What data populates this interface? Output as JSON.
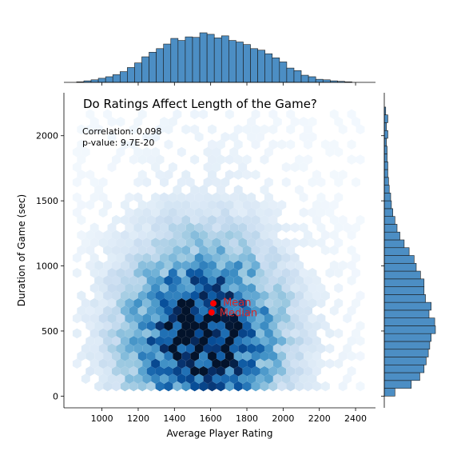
{
  "chart_data": {
    "type": "heatmap",
    "subtype": "hexbin-jointplot",
    "title": "Do Ratings Affect Length of the Game?",
    "xlabel": "Average Player Rating",
    "ylabel": "Duration of Game (sec)",
    "xlim": [
      790,
      2510
    ],
    "ylim": [
      -90,
      2330
    ],
    "x_ticks": [
      1000,
      1200,
      1400,
      1600,
      1800,
      2000,
      2200,
      2400
    ],
    "x_tick_labels": [
      "1000",
      "1200",
      "1400",
      "1600",
      "1800",
      "2000",
      "2200",
      "2400"
    ],
    "y_ticks": [
      0,
      500,
      1000,
      1500,
      2000
    ],
    "y_tick_labels": [
      "0",
      "500",
      "1000",
      "1500",
      "2000"
    ],
    "annotations": {
      "correlation": "Correlation: 0.098",
      "pvalue": "p-value: 9.7E-20",
      "mean_label": "Mean",
      "median_label": "Median"
    },
    "points": {
      "mean": {
        "x": 1615,
        "y": 712
      },
      "median": {
        "x": 1605,
        "y": 643
      }
    },
    "grid": false,
    "colors": {
      "hex_colormap": "Blues",
      "marginal_fill": "#4c8ec4",
      "marginal_edge": "#1a1a1a",
      "marker": "#ff0000",
      "annotation_text": "#d62728"
    },
    "hexbin_center": {
      "x": 1560,
      "y": 470
    },
    "hexbin_spread": {
      "x": 260,
      "y": 420
    },
    "top_histogram": {
      "bins": [
        {
          "start": 860,
          "end": 900,
          "count": 1
        },
        {
          "start": 900,
          "end": 940,
          "count": 3
        },
        {
          "start": 940,
          "end": 980,
          "count": 5
        },
        {
          "start": 980,
          "end": 1020,
          "count": 8
        },
        {
          "start": 1020,
          "end": 1060,
          "count": 11
        },
        {
          "start": 1060,
          "end": 1100,
          "count": 15
        },
        {
          "start": 1100,
          "end": 1140,
          "count": 21
        },
        {
          "start": 1140,
          "end": 1180,
          "count": 29
        },
        {
          "start": 1180,
          "end": 1220,
          "count": 38
        },
        {
          "start": 1220,
          "end": 1260,
          "count": 50
        },
        {
          "start": 1260,
          "end": 1300,
          "count": 59
        },
        {
          "start": 1300,
          "end": 1340,
          "count": 66
        },
        {
          "start": 1340,
          "end": 1380,
          "count": 75
        },
        {
          "start": 1380,
          "end": 1420,
          "count": 86
        },
        {
          "start": 1420,
          "end": 1460,
          "count": 82
        },
        {
          "start": 1460,
          "end": 1500,
          "count": 89
        },
        {
          "start": 1500,
          "end": 1540,
          "count": 88
        },
        {
          "start": 1540,
          "end": 1580,
          "count": 97
        },
        {
          "start": 1580,
          "end": 1620,
          "count": 94
        },
        {
          "start": 1620,
          "end": 1660,
          "count": 87
        },
        {
          "start": 1660,
          "end": 1700,
          "count": 91
        },
        {
          "start": 1700,
          "end": 1740,
          "count": 82
        },
        {
          "start": 1740,
          "end": 1780,
          "count": 79
        },
        {
          "start": 1780,
          "end": 1820,
          "count": 74
        },
        {
          "start": 1820,
          "end": 1860,
          "count": 66
        },
        {
          "start": 1860,
          "end": 1900,
          "count": 63
        },
        {
          "start": 1900,
          "end": 1940,
          "count": 56
        },
        {
          "start": 1940,
          "end": 1980,
          "count": 48
        },
        {
          "start": 1980,
          "end": 2020,
          "count": 40
        },
        {
          "start": 2020,
          "end": 2060,
          "count": 28
        },
        {
          "start": 2060,
          "end": 2100,
          "count": 23
        },
        {
          "start": 2100,
          "end": 2140,
          "count": 14
        },
        {
          "start": 2140,
          "end": 2180,
          "count": 11
        },
        {
          "start": 2180,
          "end": 2220,
          "count": 6
        },
        {
          "start": 2220,
          "end": 2260,
          "count": 5
        },
        {
          "start": 2260,
          "end": 2300,
          "count": 3
        },
        {
          "start": 2300,
          "end": 2340,
          "count": 2
        },
        {
          "start": 2340,
          "end": 2380,
          "count": 1
        }
      ]
    },
    "right_histogram": {
      "bins": [
        {
          "start": 0,
          "end": 60,
          "count": 15
        },
        {
          "start": 60,
          "end": 120,
          "count": 38
        },
        {
          "start": 120,
          "end": 180,
          "count": 50
        },
        {
          "start": 180,
          "end": 240,
          "count": 56
        },
        {
          "start": 240,
          "end": 300,
          "count": 59
        },
        {
          "start": 300,
          "end": 360,
          "count": 62
        },
        {
          "start": 360,
          "end": 420,
          "count": 64
        },
        {
          "start": 420,
          "end": 480,
          "count": 66
        },
        {
          "start": 480,
          "end": 540,
          "count": 72
        },
        {
          "start": 540,
          "end": 600,
          "count": 71
        },
        {
          "start": 600,
          "end": 660,
          "count": 63
        },
        {
          "start": 660,
          "end": 720,
          "count": 66
        },
        {
          "start": 720,
          "end": 780,
          "count": 58
        },
        {
          "start": 780,
          "end": 840,
          "count": 56
        },
        {
          "start": 840,
          "end": 900,
          "count": 56
        },
        {
          "start": 900,
          "end": 960,
          "count": 51
        },
        {
          "start": 960,
          "end": 1020,
          "count": 45
        },
        {
          "start": 1020,
          "end": 1080,
          "count": 42
        },
        {
          "start": 1080,
          "end": 1140,
          "count": 35
        },
        {
          "start": 1140,
          "end": 1200,
          "count": 28
        },
        {
          "start": 1200,
          "end": 1260,
          "count": 22
        },
        {
          "start": 1260,
          "end": 1320,
          "count": 18
        },
        {
          "start": 1320,
          "end": 1380,
          "count": 15
        },
        {
          "start": 1380,
          "end": 1440,
          "count": 12
        },
        {
          "start": 1440,
          "end": 1500,
          "count": 10
        },
        {
          "start": 1500,
          "end": 1560,
          "count": 9
        },
        {
          "start": 1560,
          "end": 1620,
          "count": 7
        },
        {
          "start": 1620,
          "end": 1680,
          "count": 6
        },
        {
          "start": 1680,
          "end": 1740,
          "count": 5
        },
        {
          "start": 1740,
          "end": 1800,
          "count": 5
        },
        {
          "start": 1800,
          "end": 1860,
          "count": 4
        },
        {
          "start": 1860,
          "end": 1920,
          "count": 4
        },
        {
          "start": 1920,
          "end": 1980,
          "count": 3
        },
        {
          "start": 1980,
          "end": 2040,
          "count": 5
        },
        {
          "start": 2040,
          "end": 2100,
          "count": 3
        },
        {
          "start": 2100,
          "end": 2160,
          "count": 5
        },
        {
          "start": 2160,
          "end": 2220,
          "count": 2
        }
      ]
    }
  }
}
